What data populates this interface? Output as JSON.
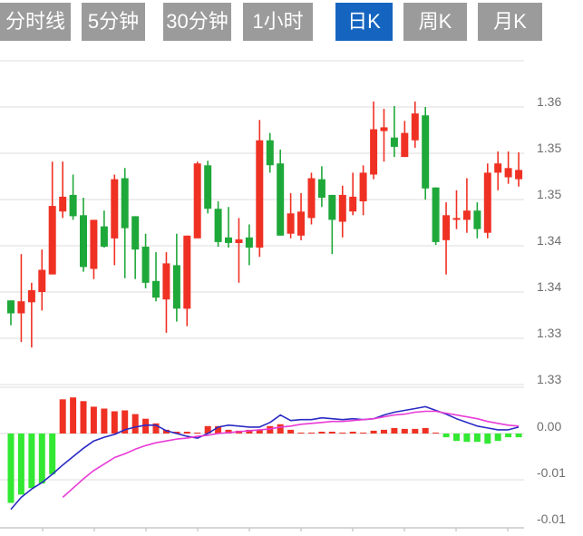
{
  "tabs": {
    "active_index": 4,
    "items": [
      {
        "label": "分时线"
      },
      {
        "label": "5分钟"
      },
      {
        "label": "30分钟"
      },
      {
        "label": "1小时"
      },
      {
        "label": "日K"
      },
      {
        "label": "周K"
      },
      {
        "label": "月K"
      }
    ]
  },
  "colors": {
    "up": "#ef3124",
    "down": "#1fa83a",
    "hist_up": "#ef3124",
    "hist_down": "#33e833",
    "dif_line": "#2a2ac4",
    "dea_line": "#e93bd6",
    "grid": "#e8e8e8",
    "axis": "#c9c9c9",
    "label": "#6e6e6e",
    "tab_bg": "#9b9b9b",
    "tab_active_bg": "#1565c0",
    "tab_text": "#ffffff"
  },
  "chart_data": {
    "type": "candlestick+macd",
    "period_selected": "日K",
    "grid": true,
    "legend_position": "none",
    "price_axis": {
      "side": "right",
      "grid_values": [
        1.365,
        1.36,
        1.355,
        1.35,
        1.345,
        1.34,
        1.335,
        1.33
      ],
      "tick_values": [
        1.36,
        1.355,
        1.35,
        1.345,
        1.34,
        1.335,
        1.33
      ],
      "tick_labels": [
        "1.36",
        "1.35",
        "1.35",
        "1.34",
        "1.34",
        "1.33",
        "1.33"
      ],
      "ylim": [
        1.3285,
        1.3655
      ]
    },
    "macd_axis": {
      "side": "right",
      "grid_values": [
        0.005,
        0,
        -0.005
      ],
      "tick_values": [
        0,
        -0.005,
        -0.01
      ],
      "tick_labels": [
        "0.00",
        "-0.01",
        "-0.01"
      ],
      "ylim": [
        -0.0102,
        0.005
      ]
    },
    "candle_format": [
      "open",
      "high",
      "low",
      "close"
    ],
    "candles": [
      [
        1.3391,
        1.3391,
        1.3364,
        1.3377
      ],
      [
        1.3377,
        1.3441,
        1.3346,
        1.339
      ],
      [
        1.3389,
        1.341,
        1.334,
        1.3402
      ],
      [
        1.34,
        1.3446,
        1.338,
        1.3424
      ],
      [
        1.3419,
        1.3541,
        1.3419,
        1.3493
      ],
      [
        1.3487,
        1.3541,
        1.348,
        1.3503
      ],
      [
        1.3505,
        1.3527,
        1.3478,
        1.3482
      ],
      [
        1.3483,
        1.3502,
        1.3422,
        1.3427
      ],
      [
        1.3425,
        1.3478,
        1.3414,
        1.3478
      ],
      [
        1.3471,
        1.3488,
        1.3448,
        1.3449
      ],
      [
        1.3458,
        1.3527,
        1.3429,
        1.3522
      ],
      [
        1.3523,
        1.3534,
        1.3415,
        1.3469
      ],
      [
        1.3482,
        1.3482,
        1.3414,
        1.3446
      ],
      [
        1.3449,
        1.3463,
        1.3404,
        1.341
      ],
      [
        1.3412,
        1.3443,
        1.339,
        1.3394
      ],
      [
        1.3392,
        1.3443,
        1.3356,
        1.3431
      ],
      [
        1.3429,
        1.3463,
        1.3368,
        1.3382
      ],
      [
        1.3382,
        1.3461,
        1.3363,
        1.3461
      ],
      [
        1.3458,
        1.3541,
        1.3458,
        1.3539
      ],
      [
        1.3537,
        1.3542,
        1.3485,
        1.349
      ],
      [
        1.349,
        1.3498,
        1.3449,
        1.3454
      ],
      [
        1.3459,
        1.3492,
        1.3448,
        1.3453
      ],
      [
        1.3453,
        1.348,
        1.341,
        1.3457
      ],
      [
        1.3459,
        1.3473,
        1.3429,
        1.3448
      ],
      [
        1.3448,
        1.3586,
        1.3438,
        1.3564
      ],
      [
        1.3564,
        1.3572,
        1.3529,
        1.3537
      ],
      [
        1.3539,
        1.3554,
        1.3461,
        1.3461
      ],
      [
        1.3463,
        1.3507,
        1.3458,
        1.3485
      ],
      [
        1.3461,
        1.3507,
        1.3456,
        1.3487
      ],
      [
        1.348,
        1.3529,
        1.3473,
        1.3523
      ],
      [
        1.3522,
        1.3536,
        1.3492,
        1.3502
      ],
      [
        1.3505,
        1.3505,
        1.3441,
        1.3478
      ],
      [
        1.3476,
        1.3515,
        1.3459,
        1.3505
      ],
      [
        1.3487,
        1.3529,
        1.3483,
        1.3503
      ],
      [
        1.3498,
        1.3537,
        1.3483,
        1.3529
      ],
      [
        1.3527,
        1.3606,
        1.3522,
        1.3576
      ],
      [
        1.3574,
        1.3598,
        1.3541,
        1.3578
      ],
      [
        1.3567,
        1.3601,
        1.3546,
        1.3557
      ],
      [
        1.3546,
        1.3585,
        1.3546,
        1.3572
      ],
      [
        1.3564,
        1.3606,
        1.3556,
        1.3593
      ],
      [
        1.3591,
        1.36,
        1.35,
        1.3512
      ],
      [
        1.3513,
        1.3513,
        1.3451,
        1.3454
      ],
      [
        1.3456,
        1.3497,
        1.3419,
        1.3483
      ],
      [
        1.3478,
        1.351,
        1.3468,
        1.348
      ],
      [
        1.3478,
        1.3523,
        1.3464,
        1.3488
      ],
      [
        1.3488,
        1.3497,
        1.3458,
        1.3468
      ],
      [
        1.3464,
        1.3539,
        1.3458,
        1.3529
      ],
      [
        1.3529,
        1.3552,
        1.351,
        1.3539
      ],
      [
        1.3524,
        1.3552,
        1.3517,
        1.3534
      ],
      [
        1.3522,
        1.3551,
        1.3514,
        1.3532
      ]
    ],
    "macd": {
      "histogram": [
        -0.0075,
        -0.0066,
        -0.0059,
        -0.0054,
        -0.0044,
        0.0037,
        0.0039,
        0.0035,
        0.0029,
        0.0027,
        0.0024,
        0.0025,
        0.0021,
        0.0016,
        0.0011,
        0.0004,
        0.0002,
        0.0002,
        0.0001,
        0.0008,
        0.0008,
        0.0004,
        0.0003,
        0.0004,
        0.0004,
        0.0008,
        0.001,
        0.0004,
        0.0001,
        0.0001,
        0.0002,
        0.0002,
        0.0001,
        0.0002,
        0.0001,
        0.0003,
        0.0004,
        0.0006,
        0.0005,
        0.0005,
        0.0006,
        0.0001,
        -0.0004,
        -0.0008,
        -0.0009,
        -0.0009,
        -0.0011,
        -0.0008,
        -0.0004,
        -0.0004
      ],
      "dif": [
        -0.0082,
        -0.0069,
        -0.006,
        -0.0053,
        -0.0044,
        -0.0034,
        -0.0025,
        -0.0016,
        -0.0008,
        -0.0004,
        -0.0001,
        0.0004,
        0.0007,
        0.0009,
        0.0009,
        0.0003,
        0.0,
        -0.0003,
        -0.0005,
        0.0,
        0.0007,
        0.0009,
        0.0008,
        0.0007,
        0.0007,
        0.0012,
        0.002,
        0.0014,
        0.0015,
        0.0015,
        0.0017,
        0.0016,
        0.0015,
        0.0016,
        0.0015,
        0.0016,
        0.002,
        0.0023,
        0.0025,
        0.0027,
        0.0029,
        0.0025,
        0.0021,
        0.0016,
        0.0012,
        0.0008,
        0.0006,
        0.0004,
        0.0004,
        0.0007
      ],
      "dea": [
        null,
        null,
        null,
        null,
        null,
        -0.0069,
        -0.0059,
        -0.0049,
        -0.004,
        -0.0033,
        -0.0026,
        -0.0022,
        -0.0017,
        -0.0013,
        -0.001,
        -0.0008,
        -0.0006,
        -0.0005,
        -0.0003,
        -0.0002,
        0.0,
        0.0001,
        0.0002,
        0.0003,
        0.0004,
        0.0005,
        0.0007,
        0.0008,
        0.001,
        0.0011,
        0.0012,
        0.0013,
        0.0013,
        0.0014,
        0.0015,
        0.0016,
        0.0018,
        0.002,
        0.0021,
        0.0023,
        0.0024,
        0.0024,
        0.0022,
        0.002,
        0.0018,
        0.0016,
        0.0013,
        0.0011,
        0.0009,
        0.0008
      ]
    }
  }
}
